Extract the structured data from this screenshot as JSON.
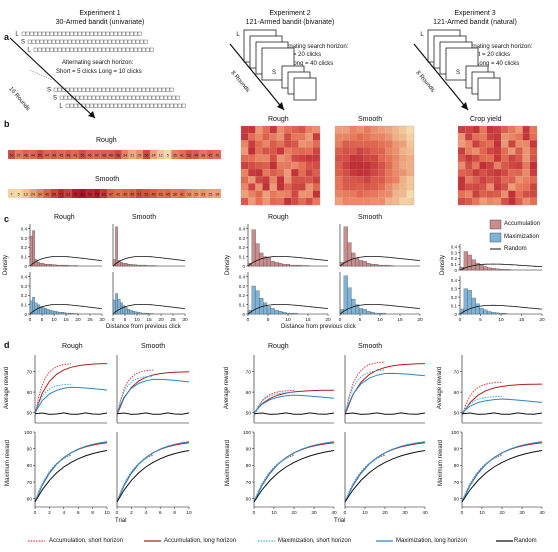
{
  "panels": {
    "a": "a",
    "b": "b",
    "c": "c",
    "d": "d"
  },
  "experiments": [
    {
      "title": "Experiment 1",
      "subtitle": "30-Armed bandit (univariate)",
      "horizon_title": "Alternating search horizon:",
      "horizon_values": "Short = 5 clicks   Long = 10 clicks",
      "rounds": "16 Rounds",
      "letters": [
        "L",
        "S",
        "L",
        "S",
        "S",
        "L"
      ]
    },
    {
      "title": "Experiment 2",
      "subtitle": "121-Armed bandit (bivariate)",
      "horizon_title": "Alternating search horizon:",
      "horizon_short": "Short = 20 clicks",
      "horizon_long": "Long = 40 clicks",
      "rounds": "8 Rounds",
      "letters": [
        "L",
        "S"
      ]
    },
    {
      "title": "Experiment 3",
      "subtitle": "121-Armed bandit (natural)",
      "horizon_title": "Alternating search horizon:",
      "horizon_short": "Short = 20 clicks",
      "horizon_long": "Long = 40 clicks",
      "rounds": "8 Rounds",
      "letters": [
        "L",
        "S"
      ]
    }
  ],
  "heatmaps": {
    "rough_label": "Rough",
    "smooth_label": "Smooth",
    "crop_label": "Crop yield",
    "rough_strip": [
      53,
      37,
      46,
      44,
      55,
      44,
      48,
      45,
      48,
      43,
      55,
      46,
      47,
      48,
      49,
      56,
      34,
      21,
      29,
      56,
      24,
      12,
      5,
      35,
      41,
      52,
      49,
      38,
      45,
      41
    ],
    "smooth_strip": [
      7,
      5,
      13,
      24,
      34,
      46,
      59,
      71,
      61,
      76,
      80,
      74,
      78,
      65,
      47,
      42,
      45,
      49,
      57,
      53,
      48,
      43,
      45,
      38,
      41,
      33,
      29,
      29,
      25,
      24
    ]
  },
  "density": {
    "ylabel": "Density",
    "xlabel": "Distance from previous click",
    "exp1_x_ticks": [
      "0",
      "5",
      "10",
      "15",
      "20",
      "25",
      "30"
    ],
    "exp2_x_ticks": [
      "0",
      "5",
      "10",
      "15",
      "20"
    ],
    "y_ticks": [
      "0",
      "0.1",
      "0.2",
      "0.3",
      "0.4"
    ],
    "exp1_rough_hist": [
      0.32,
      0.38,
      0.07,
      0.04,
      0.03,
      0.03,
      0.02,
      0.02,
      0.02,
      0.015,
      0.015,
      0.01,
      0.01,
      0.01,
      0.01,
      0.01,
      0.005,
      0.005,
      0.005,
      0.005,
      0,
      0,
      0,
      0,
      0,
      0,
      0,
      0,
      0,
      0
    ],
    "exp1_smooth_hist": [
      0.07,
      0.42,
      0.06,
      0.04,
      0.03,
      0.03,
      0.02,
      0.02,
      0.015,
      0.015,
      0.01,
      0.01,
      0.01,
      0.01,
      0.005,
      0.005,
      0.005,
      0.005,
      0,
      0,
      0,
      0,
      0,
      0,
      0,
      0,
      0,
      0,
      0,
      0
    ],
    "exp1_rough_hist_max": [
      0.14,
      0.18,
      0.12,
      0.1,
      0.08,
      0.07,
      0.06,
      0.05,
      0.04,
      0.035,
      0.03,
      0.025,
      0.02,
      0.02,
      0.015,
      0.01,
      0.01,
      0.01,
      0.005,
      0.005,
      0,
      0,
      0,
      0,
      0,
      0,
      0,
      0,
      0,
      0
    ],
    "exp1_smooth_hist_max": [
      0.15,
      0.22,
      0.16,
      0.12,
      0.09,
      0.07,
      0.05,
      0.04,
      0.03,
      0.025,
      0.02,
      0.015,
      0.01,
      0.01,
      0.01,
      0.005,
      0.005,
      0,
      0,
      0,
      0,
      0,
      0,
      0,
      0,
      0,
      0,
      0,
      0,
      0
    ],
    "exp2_rough_hist": [
      0.03,
      0.39,
      0.24,
      0.14,
      0.1,
      0.09,
      0.05,
      0.04,
      0.03,
      0.02,
      0.02,
      0.01,
      0.01,
      0.01,
      0.005,
      0.005,
      0,
      0,
      0,
      0,
      0
    ],
    "exp2_smooth_hist": [
      0.04,
      0.42,
      0.25,
      0.14,
      0.08,
      0.06,
      0.05,
      0.03,
      0.02,
      0.02,
      0.01,
      0.01,
      0.01,
      0.005,
      0,
      0,
      0,
      0,
      0,
      0,
      0
    ],
    "exp2_rough_hist_max": [
      0.04,
      0.3,
      0.25,
      0.17,
      0.12,
      0.08,
      0.06,
      0.04,
      0.03,
      0.02,
      0.01,
      0.01,
      0.01,
      0,
      0,
      0,
      0,
      0,
      0,
      0,
      0
    ],
    "exp2_smooth_hist_max": [
      0.05,
      0.41,
      0.28,
      0.16,
      0.1,
      0.06,
      0.05,
      0.03,
      0.02,
      0.01,
      0.01,
      0.01,
      0,
      0,
      0,
      0,
      0,
      0,
      0,
      0,
      0
    ],
    "exp3_hist": [
      0.05,
      0.32,
      0.26,
      0.18,
      0.12,
      0.08,
      0.06,
      0.04,
      0.03,
      0.02,
      0.015,
      0.01,
      0.01,
      0,
      0,
      0,
      0,
      0,
      0,
      0,
      0
    ],
    "exp3_hist_max": [
      0.06,
      0.3,
      0.28,
      0.19,
      0.12,
      0.07,
      0.05,
      0.03,
      0.02,
      0.015,
      0.01,
      0.01,
      0,
      0,
      0,
      0,
      0,
      0,
      0,
      0,
      0
    ]
  },
  "legend_c": {
    "items": [
      "Accumulation",
      "Maximization",
      "Random"
    ],
    "colors": [
      "#c98c8c",
      "#7fb3d5",
      "#111111"
    ]
  },
  "rewards": {
    "avg_ylabel": "Average reward",
    "max_ylabel": "Maximum reward",
    "xlabel": "Trial",
    "avg_y_ticks": [
      "50",
      "60",
      "70"
    ],
    "max_y_ticks": [
      "60",
      "70",
      "80",
      "90",
      "100"
    ],
    "exp1_x_ticks": [
      "0",
      "2",
      "4",
      "6",
      "8",
      "10"
    ],
    "exp2_x_ticks": [
      "0",
      "10",
      "20",
      "30",
      "40"
    ]
  },
  "column_titles": {
    "exp1": [
      "Rough",
      "Smooth"
    ],
    "exp2": [
      "Rough",
      "Smooth"
    ]
  },
  "legend_d": {
    "items": [
      {
        "label": "Accumulation, short horizon",
        "color": "#e03c3c",
        "dash": true
      },
      {
        "label": "Accumulation, long horizon",
        "color": "#b21e1e",
        "dash": false
      },
      {
        "label": "Maximization, short horizon",
        "color": "#3eaee0",
        "dash": true
      },
      {
        "label": "Maximization, long horizon",
        "color": "#2a86c2",
        "dash": false
      },
      {
        "label": "Random",
        "color": "#111111",
        "dash": false
      }
    ]
  },
  "colors": {
    "acc": "#c0392b",
    "acc_fill": "#c98c8c",
    "max": "#2e86c1",
    "max_fill": "#7fb3d5",
    "heat_low": "#f6e7b4",
    "heat_high": "#b0122a"
  }
}
